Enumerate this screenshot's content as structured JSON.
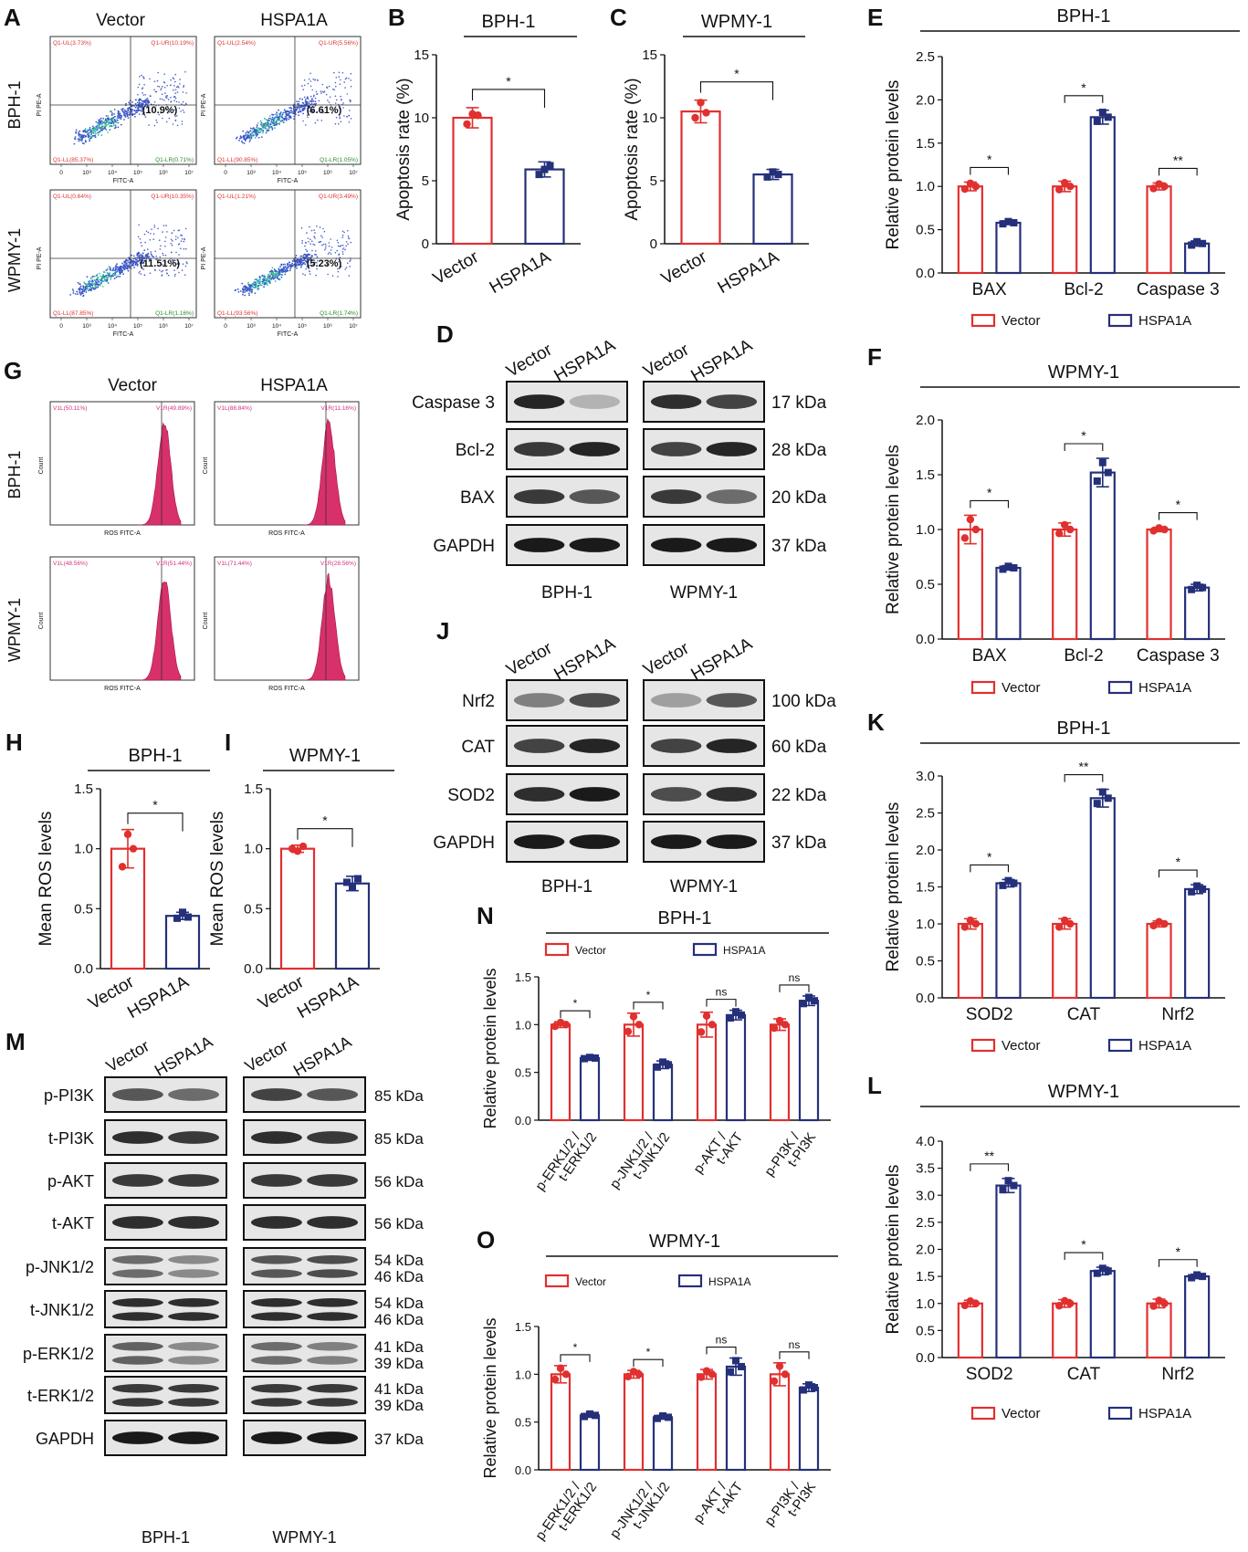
{
  "panel_labels": {
    "A": "A",
    "B": "B",
    "C": "C",
    "D": "D",
    "E": "E",
    "F": "F",
    "G": "G",
    "H": "H",
    "I": "I",
    "J": "J",
    "K": "K",
    "L": "L",
    "M": "M",
    "N": "N",
    "O": "O"
  },
  "colors": {
    "vector": "#e0302f",
    "hspa1a": "#25307a",
    "ros_fill": "#d8306a",
    "blot_bg": "#e6e6e6",
    "band": "#1a1a1a",
    "axis": "#111111"
  },
  "flow_A": {
    "col_titles": [
      "Vector",
      "HSPA1A"
    ],
    "row_titles": [
      "BPH-1",
      "WPMY-1"
    ],
    "x_axis": "FITC-A",
    "y_axis": "PI PE-A",
    "x_ticks": [
      "0",
      "10³",
      "10⁴",
      "10⁵",
      "10⁶",
      "10⁷"
    ],
    "plots": [
      {
        "ul": "Q1-UL(3.73%)",
        "ur": "Q1-UR(10.19%)",
        "ll": "Q1-LL(85.37%)",
        "lr": "Q1-LR(0.71%)",
        "pct": "(10.9%)"
      },
      {
        "ul": "Q1-UL(2.54%)",
        "ur": "Q1-UR(5.56%)",
        "ll": "Q1-LL(90.85%)",
        "lr": "Q1-LR(1.05%)",
        "pct": "(6.61%)"
      },
      {
        "ul": "Q1-UL(0.64%)",
        "ur": "Q1-UR(10.35%)",
        "ll": "Q1-LL(87.85%)",
        "lr": "Q1-LR(1.16%)",
        "pct": "(11.51%)"
      },
      {
        "ul": "Q1-UL(1.21%)",
        "ur": "Q1-UR(3.49%)",
        "ll": "Q1-LL(93.56%)",
        "lr": "Q1-LR(1.74%)",
        "pct": "(5.23%)"
      }
    ]
  },
  "ros_G": {
    "col_titles": [
      "Vector",
      "HSPA1A"
    ],
    "row_titles": [
      "BPH-1",
      "WPMY-1"
    ],
    "x_axis": "ROS FITC-A",
    "y_axis": "Count",
    "plots": [
      {
        "l": "V1L(50.11%)",
        "r": "V1R(49.89%)"
      },
      {
        "l": "V1L(88.84%)",
        "r": "V1R(11.16%)"
      },
      {
        "l": "V1L(48.56%)",
        "r": "V1R(51.44%)"
      },
      {
        "l": "V1L(71.44%)",
        "r": "V1R(28.56%)"
      }
    ]
  },
  "blot_D": {
    "group_labels": [
      "BPH-1",
      "WPMY-1"
    ],
    "lane_labels": [
      "Vector",
      "HSPA1A",
      "Vector",
      "HSPA1A"
    ],
    "rows": [
      {
        "name": "Caspase 3",
        "kda": "17 kDa"
      },
      {
        "name": "Bcl-2",
        "kda": "28 kDa"
      },
      {
        "name": "BAX",
        "kda": "20 kDa"
      },
      {
        "name": "GAPDH",
        "kda": "37 kDa"
      }
    ]
  },
  "blot_J": {
    "group_labels": [
      "BPH-1",
      "WPMY-1"
    ],
    "lane_labels": [
      "Vector",
      "HSPA1A",
      "Vector",
      "HSPA1A"
    ],
    "rows": [
      {
        "name": "Nrf2",
        "kda": "100 kDa"
      },
      {
        "name": "CAT",
        "kda": "60 kDa"
      },
      {
        "name": "SOD2",
        "kda": "22 kDa"
      },
      {
        "name": "GAPDH",
        "kda": "37 kDa"
      }
    ]
  },
  "blot_M": {
    "group_labels": [
      "BPH-1",
      "WPMY-1"
    ],
    "lane_labels": [
      "Vector",
      "HSPA1A",
      "Vector",
      "HSPA1A"
    ],
    "rows": [
      {
        "name": "p-PI3K",
        "kda": [
          "85 kDa"
        ]
      },
      {
        "name": "t-PI3K",
        "kda": [
          "85 kDa"
        ]
      },
      {
        "name": "p-AKT",
        "kda": [
          "56 kDa"
        ]
      },
      {
        "name": "t-AKT",
        "kda": [
          "56 kDa"
        ]
      },
      {
        "name": "p-JNK1/2",
        "kda": [
          "54 kDa",
          "46 kDa"
        ]
      },
      {
        "name": "t-JNK1/2",
        "kda": [
          "54 kDa",
          "46 kDa"
        ]
      },
      {
        "name": "p-ERK1/2",
        "kda": [
          "41 kDa",
          "39 kDa"
        ]
      },
      {
        "name": "t-ERK1/2",
        "kda": [
          "41 kDa",
          "39 kDa"
        ]
      },
      {
        "name": "GAPDH",
        "kda": [
          "37 kDa"
        ]
      }
    ]
  },
  "chart_data": [
    {
      "id": "B",
      "type": "bar",
      "title": "BPH-1",
      "ylabel": "Apoptosis rate (%)",
      "categories": [
        "Vector",
        "HSPA1A"
      ],
      "values": [
        10.0,
        5.9
      ],
      "errors": [
        0.8,
        0.6
      ],
      "points": [
        [
          9.5,
          10.3,
          10.2
        ],
        [
          5.5,
          5.9,
          6.2
        ]
      ],
      "ylim": [
        0,
        15
      ],
      "yticks": [
        0,
        5,
        10,
        15
      ],
      "sig": [
        "*"
      ]
    },
    {
      "id": "C",
      "type": "bar",
      "title": "WPMY-1",
      "ylabel": "Apoptosis rate (%)",
      "categories": [
        "Vector",
        "HSPA1A"
      ],
      "values": [
        10.5,
        5.5
      ],
      "errors": [
        0.9,
        0.4
      ],
      "points": [
        [
          10.0,
          11.2,
          10.4
        ],
        [
          5.3,
          5.7,
          5.5
        ]
      ],
      "ylim": [
        0,
        15
      ],
      "yticks": [
        0,
        5,
        10,
        15
      ],
      "sig": [
        "*"
      ]
    },
    {
      "id": "E",
      "type": "bar",
      "title": "BPH-1",
      "ylabel": "Relative protein levels",
      "categories": [
        "BAX",
        "Bcl-2",
        "Caspase 3"
      ],
      "series": [
        {
          "name": "Vector",
          "values": [
            1.0,
            1.0,
            1.0
          ],
          "errors": [
            0.05,
            0.06,
            0.04
          ]
        },
        {
          "name": "HSPA1A",
          "values": [
            0.58,
            1.8,
            0.34
          ],
          "errors": [
            0.02,
            0.08,
            0.03
          ]
        }
      ],
      "ylim": [
        0,
        2.5
      ],
      "yticks": [
        0,
        0.5,
        1.0,
        1.5,
        2.0,
        2.5
      ],
      "sig": [
        "*",
        "*",
        "**"
      ]
    },
    {
      "id": "F",
      "type": "bar",
      "title": "WPMY-1",
      "ylabel": "Relative protein levels",
      "categories": [
        "BAX",
        "Bcl-2",
        "Caspase 3"
      ],
      "series": [
        {
          "name": "Vector",
          "values": [
            1.0,
            1.0,
            1.0
          ],
          "errors": [
            0.13,
            0.06,
            0.02
          ]
        },
        {
          "name": "HSPA1A",
          "values": [
            0.65,
            1.52,
            0.47
          ],
          "errors": [
            0.02,
            0.13,
            0.03
          ]
        }
      ],
      "ylim": [
        0,
        2.0
      ],
      "yticks": [
        0,
        0.5,
        1.0,
        1.5,
        2.0
      ],
      "sig": [
        "*",
        "*",
        "*"
      ]
    },
    {
      "id": "H",
      "type": "bar",
      "title": "BPH-1",
      "ylabel": "Mean ROS levels",
      "categories": [
        "Vector",
        "HSPA1A"
      ],
      "values": [
        1.0,
        0.44
      ],
      "errors": [
        0.16,
        0.03
      ],
      "points": [
        [
          0.85,
          1.12,
          1.0
        ],
        [
          0.42,
          0.47,
          0.43
        ]
      ],
      "ylim": [
        0,
        1.5
      ],
      "yticks": [
        0,
        0.5,
        1.0,
        1.5
      ],
      "sig": [
        "*"
      ]
    },
    {
      "id": "I",
      "type": "bar",
      "title": "WPMY-1",
      "ylabel": "Mean ROS levels",
      "categories": [
        "Vector",
        "HSPA1A"
      ],
      "values": [
        1.0,
        0.71
      ],
      "errors": [
        0.03,
        0.06
      ],
      "points": [
        [
          1.0,
          0.98,
          1.02
        ],
        [
          0.72,
          0.68,
          0.75
        ]
      ],
      "ylim": [
        0,
        1.5
      ],
      "yticks": [
        0,
        0.5,
        1.0,
        1.5
      ],
      "sig": [
        "*"
      ]
    },
    {
      "id": "K",
      "type": "bar",
      "title": "BPH-1",
      "ylabel": "Relative protein levels",
      "categories": [
        "SOD2",
        "CAT",
        "Nrf2"
      ],
      "series": [
        {
          "name": "Vector",
          "values": [
            1.0,
            1.0,
            1.0
          ],
          "errors": [
            0.07,
            0.07,
            0.04
          ]
        },
        {
          "name": "HSPA1A",
          "values": [
            1.55,
            2.7,
            1.47
          ],
          "errors": [
            0.05,
            0.12,
            0.06
          ]
        }
      ],
      "ylim": [
        0,
        3.0
      ],
      "yticks": [
        0,
        0.5,
        1.0,
        1.5,
        2.0,
        2.5,
        3.0
      ],
      "sig": [
        "*",
        "**",
        "*"
      ]
    },
    {
      "id": "L",
      "type": "bar",
      "title": "WPMY-1",
      "ylabel": "Relative protein levels",
      "categories": [
        "SOD2",
        "CAT",
        "Nrf2"
      ],
      "series": [
        {
          "name": "Vector",
          "values": [
            1.0,
            1.0,
            1.0
          ],
          "errors": [
            0.06,
            0.07,
            0.08
          ]
        },
        {
          "name": "HSPA1A",
          "values": [
            3.18,
            1.6,
            1.5
          ],
          "errors": [
            0.13,
            0.07,
            0.04
          ]
        }
      ],
      "ylim": [
        0,
        4.0
      ],
      "yticks": [
        0,
        0.5,
        1.0,
        1.5,
        2.0,
        2.5,
        3.0,
        3.5,
        4.0
      ],
      "sig": [
        "**",
        "*",
        "*"
      ]
    },
    {
      "id": "N",
      "type": "bar",
      "title": "BPH-1",
      "ylabel": "Relative protein levels",
      "categories": [
        "p-ERK1/2 / t-ERK1/2",
        "p-JNK1/2 / t-JNK1/2",
        "p-AKT / t-AKT",
        "p-PI3K / t-PI3K"
      ],
      "series": [
        {
          "name": "Vector",
          "values": [
            1.0,
            1.0,
            1.0,
            1.0
          ],
          "errors": [
            0.03,
            0.12,
            0.13,
            0.06
          ]
        },
        {
          "name": "HSPA1A",
          "values": [
            0.65,
            0.58,
            1.1,
            1.25
          ],
          "errors": [
            0.01,
            0.04,
            0.05,
            0.05
          ]
        }
      ],
      "ylim": [
        0,
        1.5
      ],
      "yticks": [
        0,
        0.5,
        1.0,
        1.5
      ],
      "sig": [
        "*",
        "*",
        "ns",
        "ns"
      ]
    },
    {
      "id": "O",
      "type": "bar",
      "title": "WPMY-1",
      "ylabel": "Relative protein levels",
      "categories": [
        "p-ERK1/2 / t-ERK1/2",
        "p-JNK1/2 / t-JNK1/2",
        "p-AKT / t-AKT",
        "p-PI3K / t-PI3K"
      ],
      "series": [
        {
          "name": "Vector",
          "values": [
            1.0,
            1.0,
            1.0,
            1.0
          ],
          "errors": [
            0.09,
            0.04,
            0.05,
            0.12
          ],
          "points": []
        },
        {
          "name": "HSPA1A",
          "values": [
            0.57,
            0.55,
            1.08,
            0.86
          ],
          "errors": [
            0.02,
            0.02,
            0.09,
            0.04
          ]
        }
      ],
      "ylim": [
        0,
        1.5
      ],
      "yticks": [
        0,
        0.5,
        1.0,
        1.5
      ],
      "sig": [
        "*",
        "*",
        "ns",
        "ns"
      ]
    }
  ]
}
